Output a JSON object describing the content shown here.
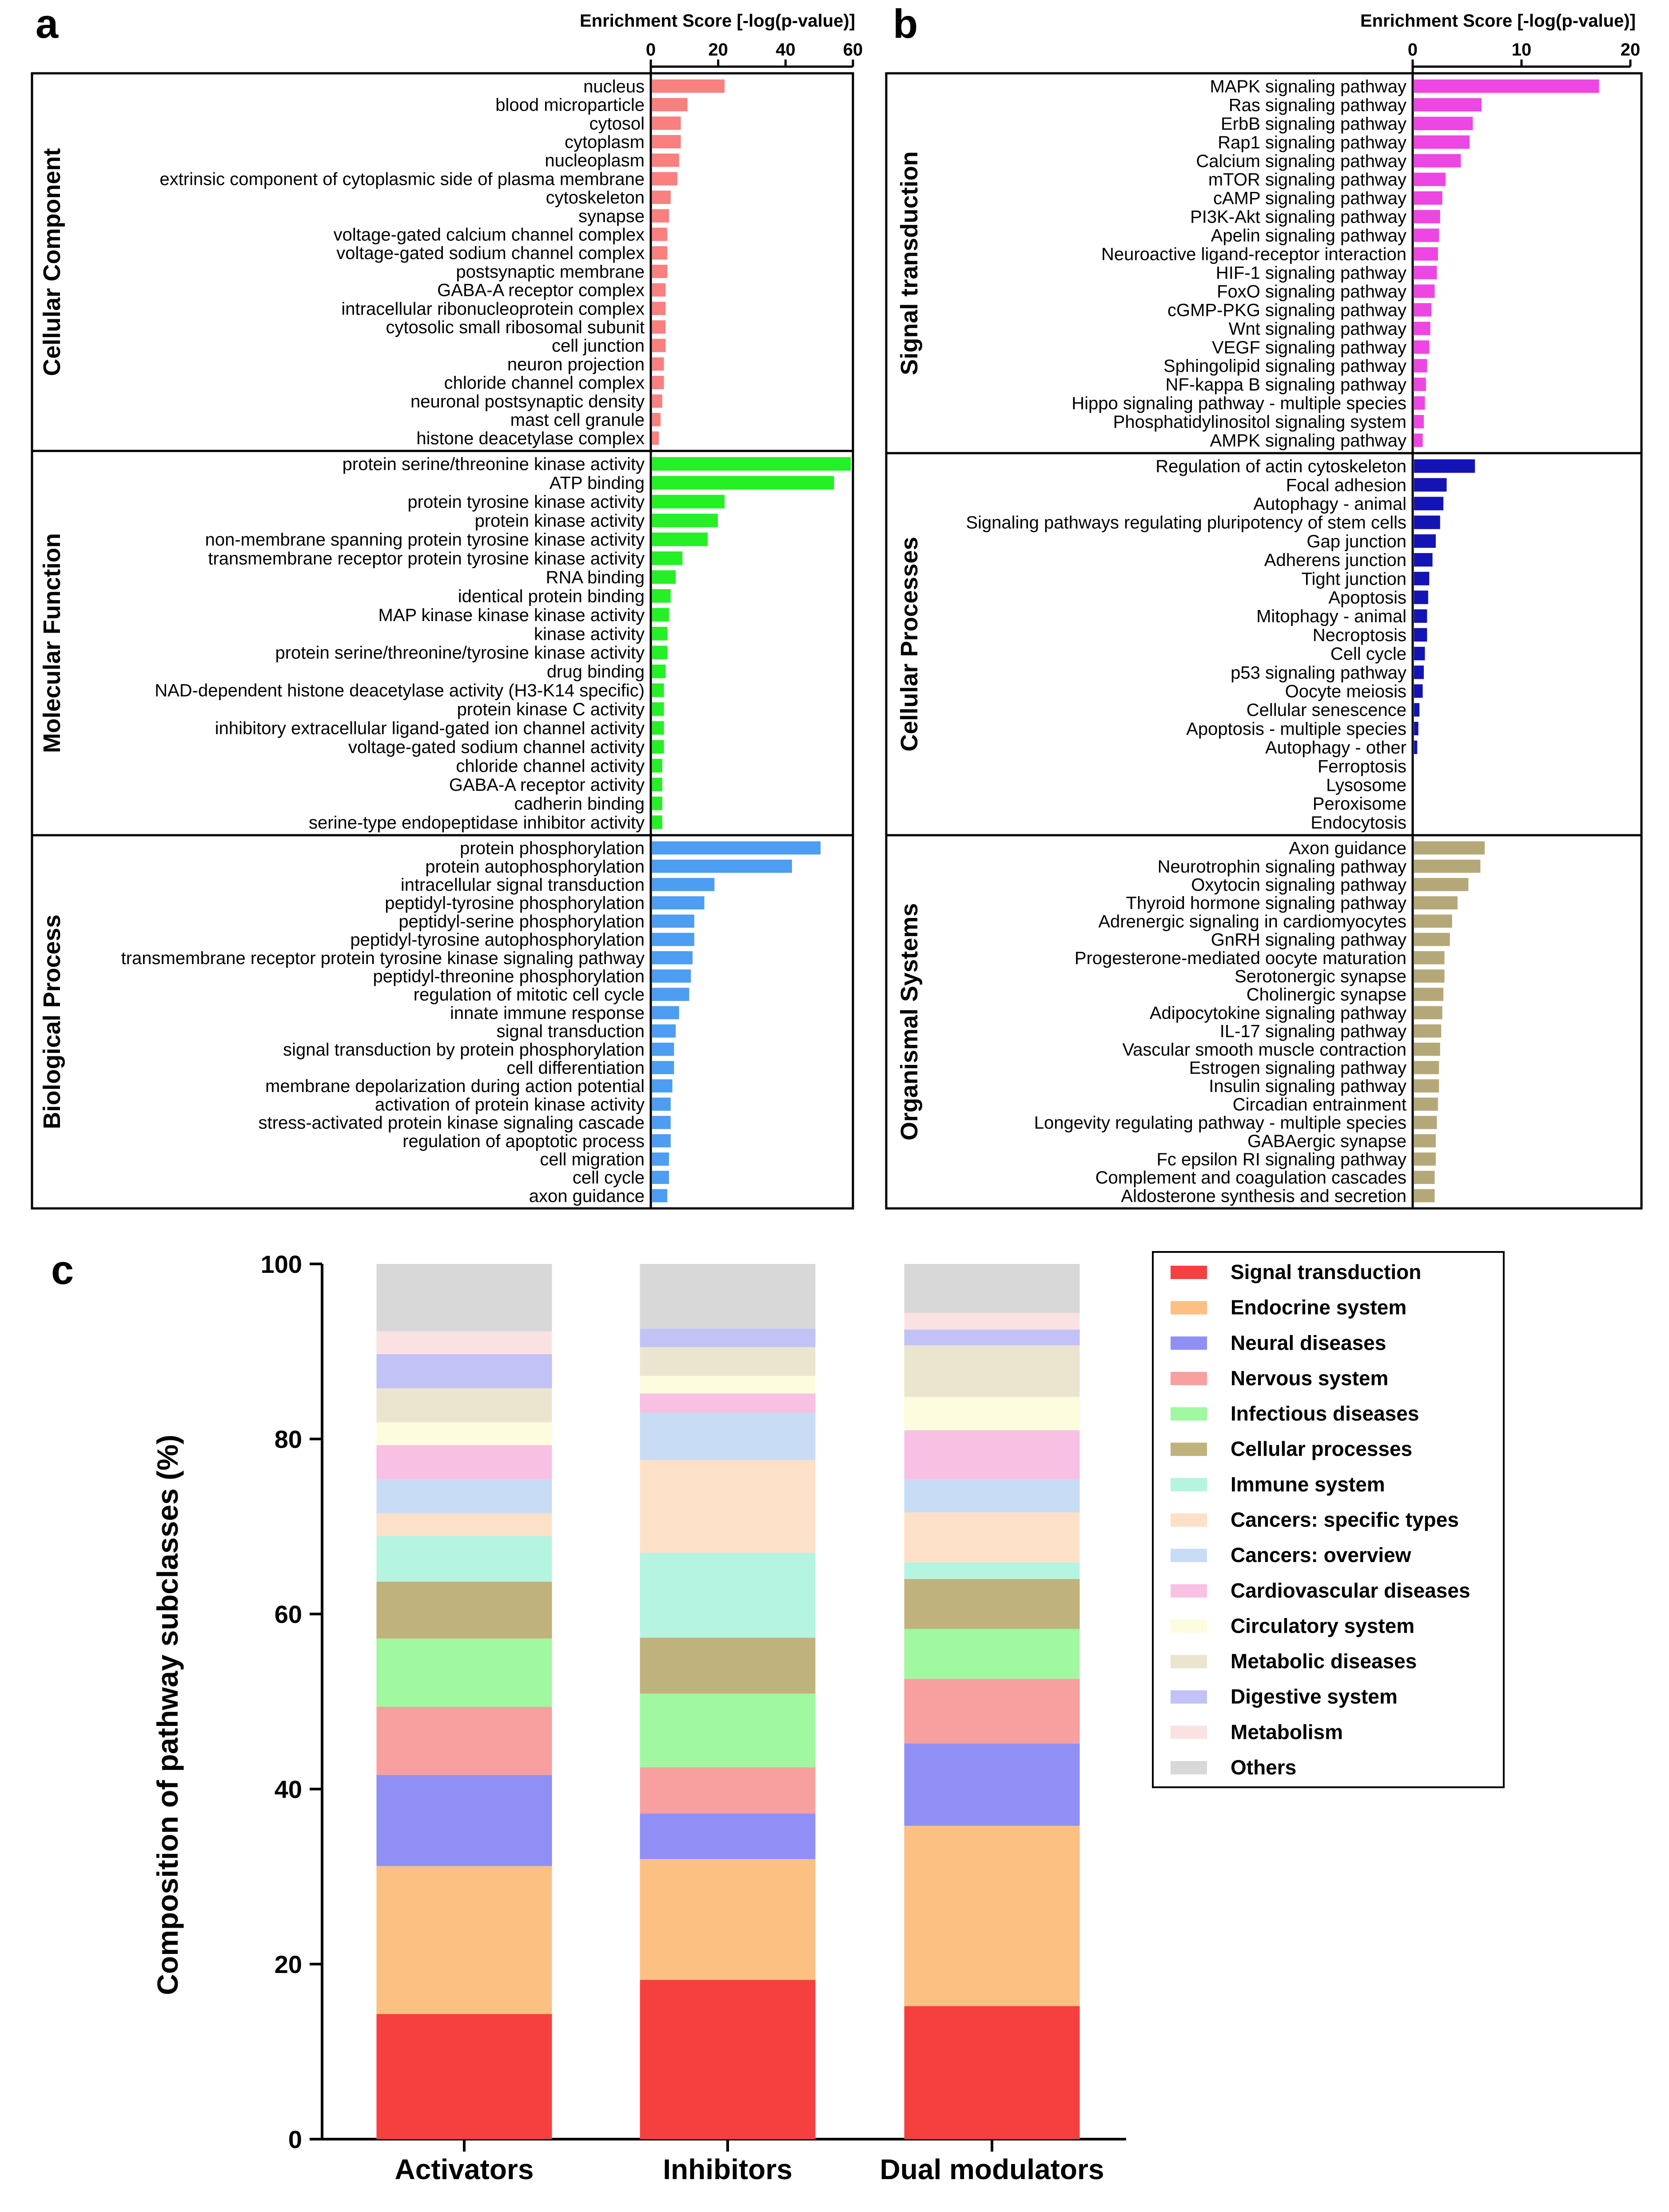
{
  "panel_labels": {
    "a": "a",
    "b": "b",
    "c": "c"
  },
  "chart_data": [
    {
      "id": "a",
      "type": "bar",
      "orientation": "horizontal",
      "xlabel": "Enrichment Score [-log(p-value)]",
      "xlim": [
        0,
        60
      ],
      "xticks": [
        "0",
        "20",
        "40",
        "60"
      ],
      "groups": [
        {
          "name": "Cellular Component",
          "color": "#fa7f7f",
          "categories": [
            "nucleus",
            "blood microparticle",
            "cytosol",
            "cytoplasm",
            "nucleoplasm",
            "extrinsic component of cytoplasmic side of plasma membrane",
            "cytoskeleton",
            "synapse",
            "voltage-gated calcium channel complex",
            "voltage-gated sodium channel complex",
            "postsynaptic membrane",
            "GABA-A receptor complex",
            "intracellular ribonucleoprotein complex",
            "cytosolic small ribosomal subunit",
            "cell junction",
            "neuron projection",
            "chloride channel complex",
            "neuronal postsynaptic density",
            "mast cell granule",
            "histone deacetylase complex"
          ],
          "values": [
            21.5,
            10.5,
            8.5,
            8.5,
            8.0,
            7.5,
            5.5,
            5.0,
            4.5,
            4.5,
            4.5,
            4.0,
            4.0,
            4.0,
            4.0,
            3.5,
            3.5,
            3.0,
            2.5,
            2.0
          ]
        },
        {
          "name": "Molecular Function",
          "color": "#25f025",
          "categories": [
            "protein serine/threonine kinase activity",
            "ATP binding",
            "protein tyrosine kinase activity",
            "protein kinase activity",
            "non-membrane spanning protein tyrosine kinase activity",
            "transmembrane receptor protein tyrosine kinase activity",
            "RNA binding",
            "identical protein binding",
            "MAP kinase kinase kinase activity",
            "kinase activity",
            "protein serine/threonine/tyrosine kinase activity",
            "drug binding",
            "NAD-dependent histone deacetylase activity (H3-K14 specific)",
            "protein kinase C activity",
            "inhibitory extracellular ligand-gated ion channel activity",
            "voltage-gated sodium channel activity",
            "chloride channel activity",
            "GABA-A receptor activity",
            "cadherin binding",
            "serine-type endopeptidase inhibitor activity"
          ],
          "values": [
            59,
            54,
            21.5,
            19.5,
            16.5,
            9.0,
            7.0,
            5.5,
            5.0,
            4.5,
            4.5,
            4.0,
            3.5,
            3.5,
            3.5,
            3.5,
            3.0,
            3.0,
            3.0,
            3.0
          ]
        },
        {
          "name": "Biological Process",
          "color": "#4d9df2",
          "categories": [
            "protein phosphorylation",
            "protein autophosphorylation",
            "intracellular signal transduction",
            "peptidyl-tyrosine phosphorylation",
            "peptidyl-serine phosphorylation",
            "peptidyl-tyrosine autophosphorylation",
            "transmembrane receptor protein tyrosine kinase signaling pathway",
            "peptidyl-threonine phosphorylation",
            "regulation of mitotic cell cycle",
            "innate immune response",
            "signal transduction",
            "signal transduction by protein phosphorylation",
            "cell differentiation",
            "membrane depolarization during action potential",
            "activation of protein kinase activity",
            "stress-activated protein kinase signaling cascade",
            "regulation of apoptotic process",
            "cell migration",
            "cell cycle",
            "axon guidance"
          ],
          "values": [
            50,
            41.5,
            18.5,
            15.5,
            12.5,
            12.5,
            12,
            11.5,
            11,
            8.0,
            7.0,
            6.5,
            6.5,
            6.0,
            5.5,
            5.5,
            5.5,
            5.0,
            5.0,
            4.5
          ]
        }
      ]
    },
    {
      "id": "b",
      "type": "bar",
      "orientation": "horizontal",
      "xlabel": "Enrichment Score [-log(p-value)]",
      "xlim": [
        0,
        20
      ],
      "xticks": [
        "0",
        "10",
        "20"
      ],
      "groups": [
        {
          "name": "Signal transduction",
          "color": "#ee46e2",
          "categories": [
            "MAPK signaling pathway",
            "Ras signaling pathway",
            "ErbB signaling pathway",
            "Rap1 signaling pathway",
            "Calcium signaling pathway",
            "mTOR signaling pathway",
            "cAMP signaling pathway",
            "PI3K-Akt signaling pathway",
            "Apelin signaling pathway",
            "Neuroactive ligand-receptor interaction",
            "HIF-1 signaling pathway",
            "FoxO signaling pathway",
            "cGMP-PKG signaling pathway",
            "Wnt signaling pathway",
            "VEGF signaling pathway",
            "Sphingolipid signaling pathway",
            "NF-kappa B signaling pathway",
            "Hippo signaling pathway - multiple species",
            "Phosphatidylinositol signaling system",
            "AMPK signaling pathway"
          ],
          "values": [
            17.0,
            6.2,
            5.4,
            5.1,
            4.3,
            2.9,
            2.6,
            2.4,
            2.3,
            2.2,
            2.1,
            1.9,
            1.6,
            1.5,
            1.4,
            1.2,
            1.1,
            1.0,
            0.9,
            0.8
          ]
        },
        {
          "name": "Cellular Processes",
          "color": "#1414b4",
          "categories": [
            "Regulation of actin cytoskeleton",
            "Focal adhesion",
            "Autophagy - animal",
            "Signaling pathways regulating pluripotency of stem cells",
            "Gap junction",
            "Adherens junction",
            "Tight junction",
            "Apoptosis",
            "Mitophagy - animal",
            "Necroptosis",
            "Cell cycle",
            "p53 signaling pathway",
            "Oocyte meiosis",
            "Cellular senescence",
            "Apoptosis - multiple species",
            "Autophagy - other",
            "Ferroptosis",
            "Lysosome",
            "Peroxisome",
            "Endocytosis"
          ],
          "values": [
            5.6,
            3.0,
            2.7,
            2.4,
            2.0,
            1.7,
            1.4,
            1.3,
            1.2,
            1.2,
            1.0,
            0.9,
            0.8,
            0.5,
            0.4,
            0.3,
            0.0,
            0.0,
            0.0,
            0.0
          ]
        },
        {
          "name": "Organismal Systems",
          "color": "#b5a878",
          "categories": [
            "Axon guidance",
            "Neurotrophin signaling pathway",
            "Oxytocin signaling pathway",
            "Thyroid hormone signaling pathway",
            "Adrenergic signaling in cardiomyocytes",
            "GnRH signaling pathway",
            "Progesterone-mediated oocyte maturation",
            "Serotonergic synapse",
            "Cholinergic synapse",
            "Adipocytokine signaling pathway",
            "IL-17 signaling pathway",
            "Vascular smooth muscle contraction",
            "Estrogen signaling pathway",
            "Insulin signaling pathway",
            "Circadian entrainment",
            "Longevity regulating pathway - multiple species",
            "GABAergic synapse",
            "Fc epsilon RI signaling pathway",
            "Complement and coagulation cascades",
            "Aldosterone synthesis and secretion"
          ],
          "values": [
            6.5,
            6.1,
            5.0,
            4.0,
            3.5,
            3.3,
            2.8,
            2.8,
            2.7,
            2.6,
            2.5,
            2.4,
            2.3,
            2.3,
            2.2,
            2.1,
            2.0,
            2.0,
            1.9,
            1.9
          ]
        }
      ]
    },
    {
      "id": "c",
      "type": "bar",
      "stacked": true,
      "ylabel": "Composition of pathway subclasses (%)",
      "ylim": [
        0,
        100
      ],
      "yticks": [
        "0",
        "20",
        "40",
        "60",
        "80",
        "100"
      ],
      "categories": [
        "Activators",
        "Inhibitors",
        "Dual modulators"
      ],
      "series": [
        {
          "name": "Signal transduction",
          "color": "#f64040",
          "values": [
            14.3,
            18.2,
            15.2
          ]
        },
        {
          "name": "Endocrine system",
          "color": "#fcc083",
          "values": [
            16.9,
            13.8,
            20.6
          ]
        },
        {
          "name": "Neural diseases",
          "color": "#8f8ff6",
          "values": [
            10.4,
            5.2,
            9.4
          ]
        },
        {
          "name": "Nervous system",
          "color": "#f8a0a0",
          "values": [
            7.8,
            5.3,
            7.4
          ]
        },
        {
          "name": "Infectious diseases",
          "color": "#a0f8a0",
          "values": [
            7.8,
            8.4,
            5.7
          ]
        },
        {
          "name": "Cellular processes",
          "color": "#c0b27c",
          "values": [
            6.5,
            6.4,
            5.7
          ]
        },
        {
          "name": "Immune system",
          "color": "#b4f4e0",
          "values": [
            5.2,
            9.7,
            1.9
          ]
        },
        {
          "name": "Cancers: specific types",
          "color": "#fde0c8",
          "values": [
            2.6,
            10.6,
            5.7
          ]
        },
        {
          "name": "Cancers: overview",
          "color": "#c8dcf6",
          "values": [
            3.9,
            5.4,
            3.8
          ]
        },
        {
          "name": "Cardiovascular diseases",
          "color": "#f8c0e2",
          "values": [
            3.9,
            2.2,
            5.6
          ]
        },
        {
          "name": "Circulatory system",
          "color": "#fcfcde",
          "values": [
            2.6,
            2.0,
            3.8
          ]
        },
        {
          "name": "Metabolic diseases",
          "color": "#ebe5d0",
          "values": [
            3.9,
            3.3,
            5.9
          ]
        },
        {
          "name": "Digestive system",
          "color": "#c2c2f6",
          "values": [
            3.9,
            2.1,
            1.8
          ]
        },
        {
          "name": "Metabolism",
          "color": "#fbe2e2",
          "values": [
            2.6,
            0.0,
            1.9
          ]
        },
        {
          "name": "Others",
          "color": "#d8d8d8",
          "values": [
            7.7,
            7.4,
            5.6
          ]
        }
      ]
    }
  ]
}
